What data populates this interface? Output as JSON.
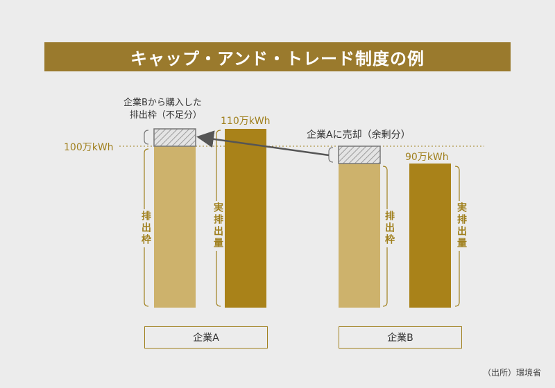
{
  "title": "キャップ・アンド・トレード制度の例",
  "reference_label": "100万kWh",
  "company_a": {
    "name": "企業A",
    "purchased_label_line1": "企業Bから購入した",
    "purchased_label_line2": "排出枠（不足分）",
    "cap_label": "排出枠",
    "actual_label": "実排出量",
    "actual_value_label": "110万kWh"
  },
  "company_b": {
    "name": "企業B",
    "sold_label": "企業Aに売却（余剰分）",
    "cap_label": "排出枠",
    "actual_label": "実排出量",
    "actual_value_label": "90万kWh"
  },
  "source": "（出所）環境省",
  "colors": {
    "cap_bar": "#cdb26c",
    "actual_bar": "#a98219",
    "accent": "#9a7a2d",
    "hatch": "#9a9a9a"
  }
}
